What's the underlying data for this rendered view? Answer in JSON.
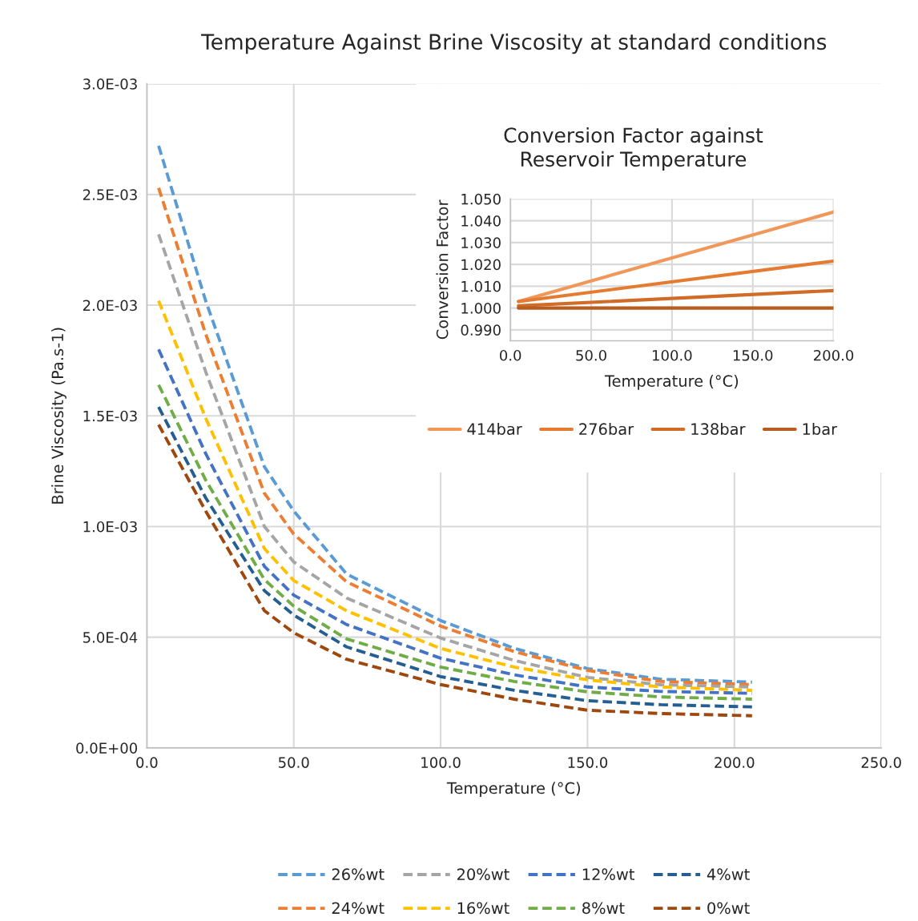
{
  "chart_data": [
    {
      "type": "line",
      "title": "Temperature Against Brine Viscosity at standard conditions",
      "xlabel": "Temperature (°C)",
      "ylabel": "Brine Viscosity (Pa.s-1)",
      "x": [
        4,
        20,
        40,
        50,
        68,
        100,
        125,
        150,
        175,
        206
      ],
      "series": [
        {
          "name": "26%wt",
          "color": "#5b9bd5",
          "values": [
            0.00272,
            0.00202,
            0.00127,
            0.00107,
            0.000785,
            0.000575,
            0.00045,
            0.000358,
            0.00031,
            0.000297
          ]
        },
        {
          "name": "24%wt",
          "color": "#ed7d31",
          "values": [
            0.00253,
            0.00187,
            0.00115,
            0.000966,
            0.00075,
            0.00055,
            0.000435,
            0.00035,
            0.0003,
            0.000286
          ]
        },
        {
          "name": "20%wt",
          "color": "#a5a5a5",
          "values": [
            0.00232,
            0.0017,
            0.001,
            0.00084,
            0.000677,
            0.000496,
            0.000395,
            0.000318,
            0.000285,
            0.000275
          ]
        },
        {
          "name": "16%wt",
          "color": "#ffc000",
          "values": [
            0.00202,
            0.00149,
            0.0009,
            0.000756,
            0.000619,
            0.000449,
            0.000365,
            0.000307,
            0.000275,
            0.00026
          ]
        },
        {
          "name": "12%wt",
          "color": "#4472c4",
          "values": [
            0.0018,
            0.00133,
            0.00082,
            0.00069,
            0.000557,
            0.000405,
            0.00033,
            0.000275,
            0.000255,
            0.000246
          ]
        },
        {
          "name": "8%wt",
          "color": "#70ad47",
          "values": [
            0.00164,
            0.00121,
            0.00076,
            0.00064,
            0.000492,
            0.000365,
            0.0003,
            0.000253,
            0.00023,
            0.00022
          ]
        },
        {
          "name": "4%wt",
          "color": "#255e91",
          "values": [
            0.00154,
            0.00113,
            0.00071,
            0.0006,
            0.000456,
            0.000322,
            0.00026,
            0.000213,
            0.000195,
            0.000185
          ]
        },
        {
          "name": "0%wt",
          "color": "#9e480e",
          "values": [
            0.00146,
            0.00107,
            0.00062,
            0.00052,
            0.0004,
            0.000286,
            0.00022,
            0.00017,
            0.000155,
            0.000145
          ]
        }
      ],
      "xlim": [
        0,
        250
      ],
      "xticks": [
        {
          "value": 0,
          "label": "0.0"
        },
        {
          "value": 50,
          "label": "50.0"
        },
        {
          "value": 100,
          "label": "100.0"
        },
        {
          "value": 150,
          "label": "150.0"
        },
        {
          "value": 200,
          "label": "200.0"
        },
        {
          "value": 250,
          "label": "250.0"
        }
      ],
      "ylim": [
        0,
        0.003
      ],
      "yticks": [
        {
          "value": 0,
          "label": "0.0E+00"
        },
        {
          "value": 0.0005,
          "label": "5.0E-04"
        },
        {
          "value": 0.001,
          "label": "1.0E-03"
        },
        {
          "value": 0.0015,
          "label": "1.5E-03"
        },
        {
          "value": 0.002,
          "label": "2.0E-03"
        },
        {
          "value": 0.0025,
          "label": "2.5E-03"
        },
        {
          "value": 0.003,
          "label": "3.0E-03"
        }
      ],
      "grid": true,
      "legend": "bottom",
      "line_style": "dashed"
    },
    {
      "type": "line",
      "title": "Conversion Factor against\nReservoir Temperature",
      "xlabel": "Temperature (°C)",
      "ylabel": "Conversion Factor",
      "x": [
        5,
        200
      ],
      "series": [
        {
          "name": "414bar",
          "color": "#f1975a",
          "values": [
            1.003,
            1.044
          ]
        },
        {
          "name": "276bar",
          "color": "#e47b30",
          "values": [
            1.003,
            1.0215
          ]
        },
        {
          "name": "138bar",
          "color": "#d06c28",
          "values": [
            1.001,
            1.008
          ]
        },
        {
          "name": "1bar",
          "color": "#b85d22",
          "values": [
            1.0,
            1.0
          ]
        }
      ],
      "xlim": [
        0,
        200
      ],
      "xticks": [
        {
          "value": 0,
          "label": "0.0"
        },
        {
          "value": 50,
          "label": "50.0"
        },
        {
          "value": 100,
          "label": "100.0"
        },
        {
          "value": 150,
          "label": "150.0"
        },
        {
          "value": 200,
          "label": "200.0"
        }
      ],
      "ylim": [
        0.985,
        1.05
      ],
      "yticks": [
        {
          "value": 0.99,
          "label": "0.990"
        },
        {
          "value": 1.0,
          "label": "1.000"
        },
        {
          "value": 1.01,
          "label": "1.010"
        },
        {
          "value": 1.02,
          "label": "1.020"
        },
        {
          "value": 1.03,
          "label": "1.030"
        },
        {
          "value": 1.04,
          "label": "1.040"
        },
        {
          "value": 1.05,
          "label": "1.050"
        }
      ],
      "grid": true,
      "legend": "bottom",
      "line_style": "solid"
    }
  ]
}
